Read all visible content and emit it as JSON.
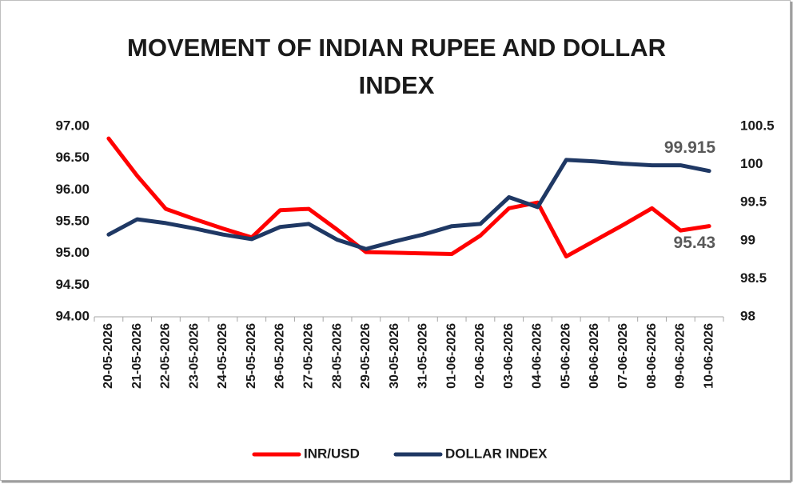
{
  "chart_data": {
    "type": "line",
    "title": "MOVEMENT OF INDIAN RUPEE AND DOLLAR INDEX",
    "categories": [
      "20-05-2026",
      "21-05-2026",
      "22-05-2026",
      "23-05-2026",
      "24-05-2026",
      "25-05-2026",
      "26-05-2026",
      "27-05-2026",
      "28-05-2026",
      "29-05-2026",
      "30-05-2026",
      "31-05-2026",
      "01-06-2026",
      "02-06-2026",
      "03-06-2026",
      "04-06-2026",
      "05-06-2026",
      "06-06-2026",
      "07-06-2026",
      "08-06-2026",
      "09-06-2026",
      "10-06-2026"
    ],
    "series": [
      {
        "name": "INR/USD",
        "color": "#ff0000",
        "values": [
          96.81,
          96.22,
          95.7,
          95.54,
          95.39,
          95.25,
          95.68,
          95.7,
          95.37,
          95.02,
          95.01,
          95.0,
          94.99,
          95.28,
          95.71,
          95.8,
          94.95,
          95.2,
          95.45,
          95.71,
          95.36,
          95.43
        ]
      },
      {
        "name": "DOLLAR INDEX",
        "color": "#1f3864",
        "axis": "y2",
        "values": [
          99.08,
          99.28,
          99.23,
          99.16,
          99.08,
          99.02,
          99.18,
          99.22,
          99.01,
          98.89,
          98.99,
          99.08,
          99.19,
          99.22,
          99.57,
          99.44,
          100.06,
          100.04,
          100.01,
          99.99,
          99.99,
          99.915
        ]
      }
    ],
    "ylim": [
      94,
      97
    ],
    "yticks": [
      {
        "value": 94,
        "label": "94.00"
      },
      {
        "value": 94.5,
        "label": "94.50"
      },
      {
        "value": 95,
        "label": "95.00"
      },
      {
        "value": 95.5,
        "label": "95.50"
      },
      {
        "value": 96,
        "label": "96.00"
      },
      {
        "value": 96.5,
        "label": "96.50"
      },
      {
        "value": 97,
        "label": "97.00"
      }
    ],
    "y2lim": [
      98,
      100.5
    ],
    "y2ticks": [
      98,
      98.5,
      99,
      99.5,
      100,
      100.5
    ],
    "grid": false,
    "legend": "bottom"
  }
}
